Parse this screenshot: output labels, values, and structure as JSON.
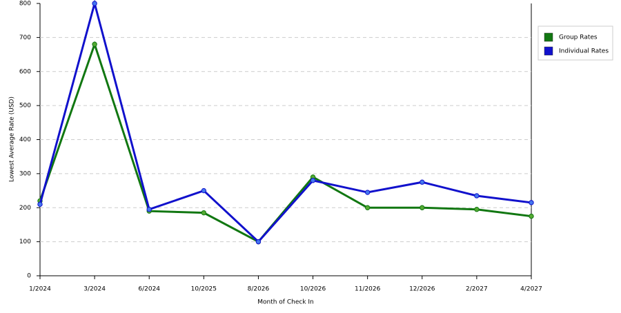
{
  "chart_data": {
    "type": "line",
    "x_label": "Month of Check In",
    "y_label": "Lowest Average Rate (USD)",
    "categories": [
      "1/2024",
      "3/2024",
      "6/2024",
      "10/2025",
      "8/2026",
      "10/2026",
      "11/2026",
      "12/2026",
      "2/2027",
      "4/2027"
    ],
    "series": [
      {
        "name": "Group Rates",
        "color": "#117711",
        "values": [
          220,
          680,
          190,
          185,
          100,
          290,
          200,
          200,
          195,
          175
        ]
      },
      {
        "name": "Individual Rates",
        "color": "#1111cc",
        "values": [
          210,
          800,
          195,
          250,
          100,
          280,
          245,
          275,
          235,
          215
        ]
      }
    ],
    "ylim": [
      0,
      800
    ],
    "yticks": [
      0,
      100,
      200,
      300,
      400,
      500,
      600,
      700,
      800
    ],
    "grid": true,
    "legend": "right"
  }
}
